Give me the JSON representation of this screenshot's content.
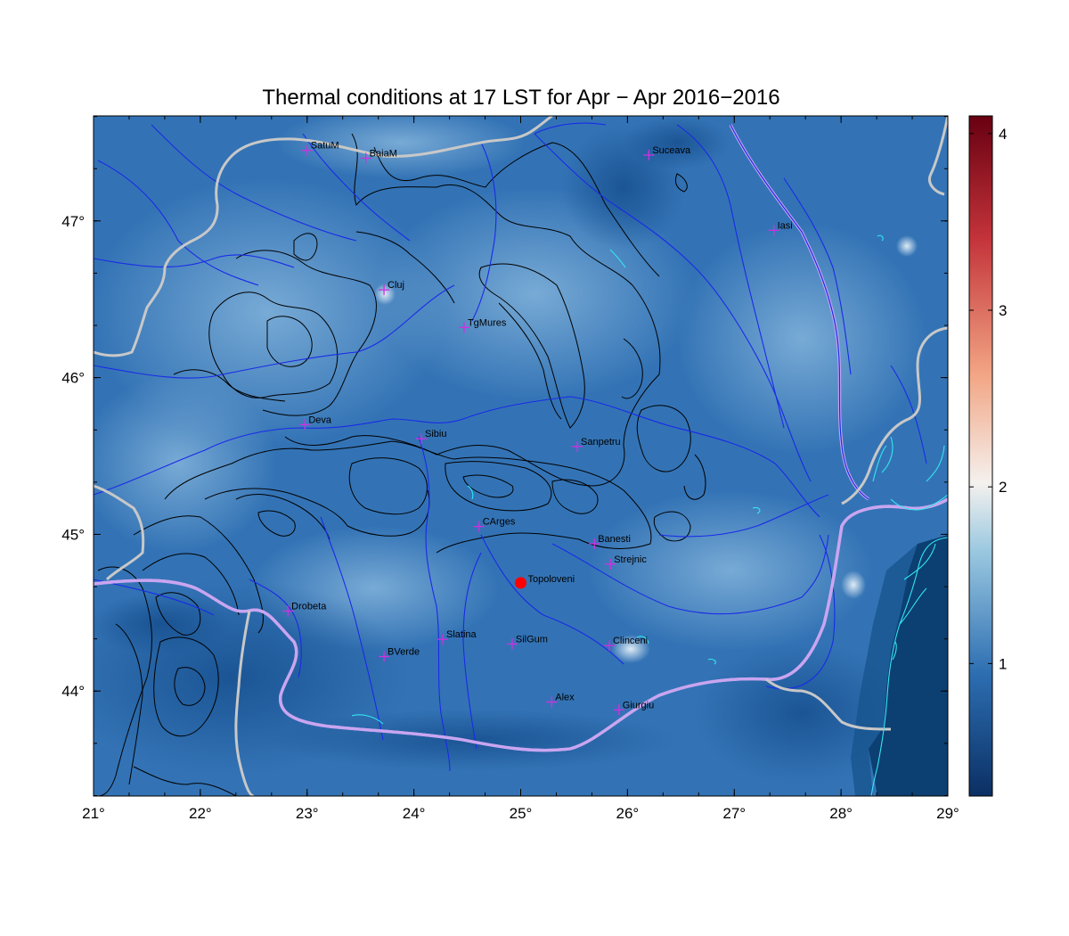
{
  "title": "Thermal conditions at 17 LST for Apr − Apr  2016−2016",
  "map": {
    "lon_range": [
      21,
      29
    ],
    "lat_range": [
      43.33,
      47.67
    ],
    "x_ticks": [
      {
        "value": 21,
        "label": "21°"
      },
      {
        "value": 22,
        "label": "22°"
      },
      {
        "value": 23,
        "label": "23°"
      },
      {
        "value": 24,
        "label": "24°"
      },
      {
        "value": 25,
        "label": "25°"
      },
      {
        "value": 26,
        "label": "26°"
      },
      {
        "value": 27,
        "label": "27°"
      },
      {
        "value": 28,
        "label": "28°"
      },
      {
        "value": 29,
        "label": "29°"
      }
    ],
    "y_ticks": [
      {
        "value": 44,
        "label": "44°"
      },
      {
        "value": 45,
        "label": "45°"
      },
      {
        "value": 46,
        "label": "46°"
      },
      {
        "value": 47,
        "label": "47°"
      }
    ],
    "cities": [
      {
        "name": "SatuM",
        "lon": 23.0,
        "lat": 47.45
      },
      {
        "name": "BaiaM",
        "lon": 23.55,
        "lat": 47.4
      },
      {
        "name": "Suceava",
        "lon": 26.2,
        "lat": 47.42
      },
      {
        "name": "Iasi",
        "lon": 27.37,
        "lat": 46.94
      },
      {
        "name": "Cluj",
        "lon": 23.72,
        "lat": 46.56
      },
      {
        "name": "TgMures",
        "lon": 24.47,
        "lat": 46.32
      },
      {
        "name": "Deva",
        "lon": 22.98,
        "lat": 45.7
      },
      {
        "name": "Sibiu",
        "lon": 24.07,
        "lat": 45.61
      },
      {
        "name": "Sanpetru",
        "lon": 25.53,
        "lat": 45.56
      },
      {
        "name": "CArges",
        "lon": 24.61,
        "lat": 45.05
      },
      {
        "name": "Banesti",
        "lon": 25.69,
        "lat": 44.94
      },
      {
        "name": "Strejnic",
        "lon": 25.84,
        "lat": 44.81
      },
      {
        "name": "Drobeta",
        "lon": 22.82,
        "lat": 44.51
      },
      {
        "name": "Slatina",
        "lon": 24.27,
        "lat": 44.33
      },
      {
        "name": "SilGum",
        "lon": 24.92,
        "lat": 44.3
      },
      {
        "name": "Clinceni",
        "lon": 25.83,
        "lat": 44.29
      },
      {
        "name": "BVerde",
        "lon": 23.72,
        "lat": 44.22
      },
      {
        "name": "Alex",
        "lon": 25.29,
        "lat": 43.93
      },
      {
        "name": "Giurgiu",
        "lon": 25.92,
        "lat": 43.88
      }
    ],
    "highlight_site": {
      "name": "Topoloveni",
      "lon": 25.0,
      "lat": 44.69,
      "color": "#ff0000"
    },
    "colors": {
      "field_base": "#2f6db0",
      "field_light": "#5f9ed1",
      "field_dark": "#0c3f7a",
      "contour": "#000000",
      "river": "#1a2ae8",
      "border": "#c8c8c8",
      "coast": "#33e6f0",
      "city_marker": "#d030e0"
    }
  },
  "colorbar": {
    "min": 0.25,
    "max": 4.1,
    "ticks": [
      {
        "value": 1,
        "label": "1"
      },
      {
        "value": 2,
        "label": "2"
      },
      {
        "value": 3,
        "label": "3"
      },
      {
        "value": 4,
        "label": "4"
      }
    ],
    "stops": [
      "#0b2f64",
      "#2d6eb1",
      "#9ac8e0",
      "#f4f1ee",
      "#f2a584",
      "#c3333a",
      "#680011"
    ]
  }
}
